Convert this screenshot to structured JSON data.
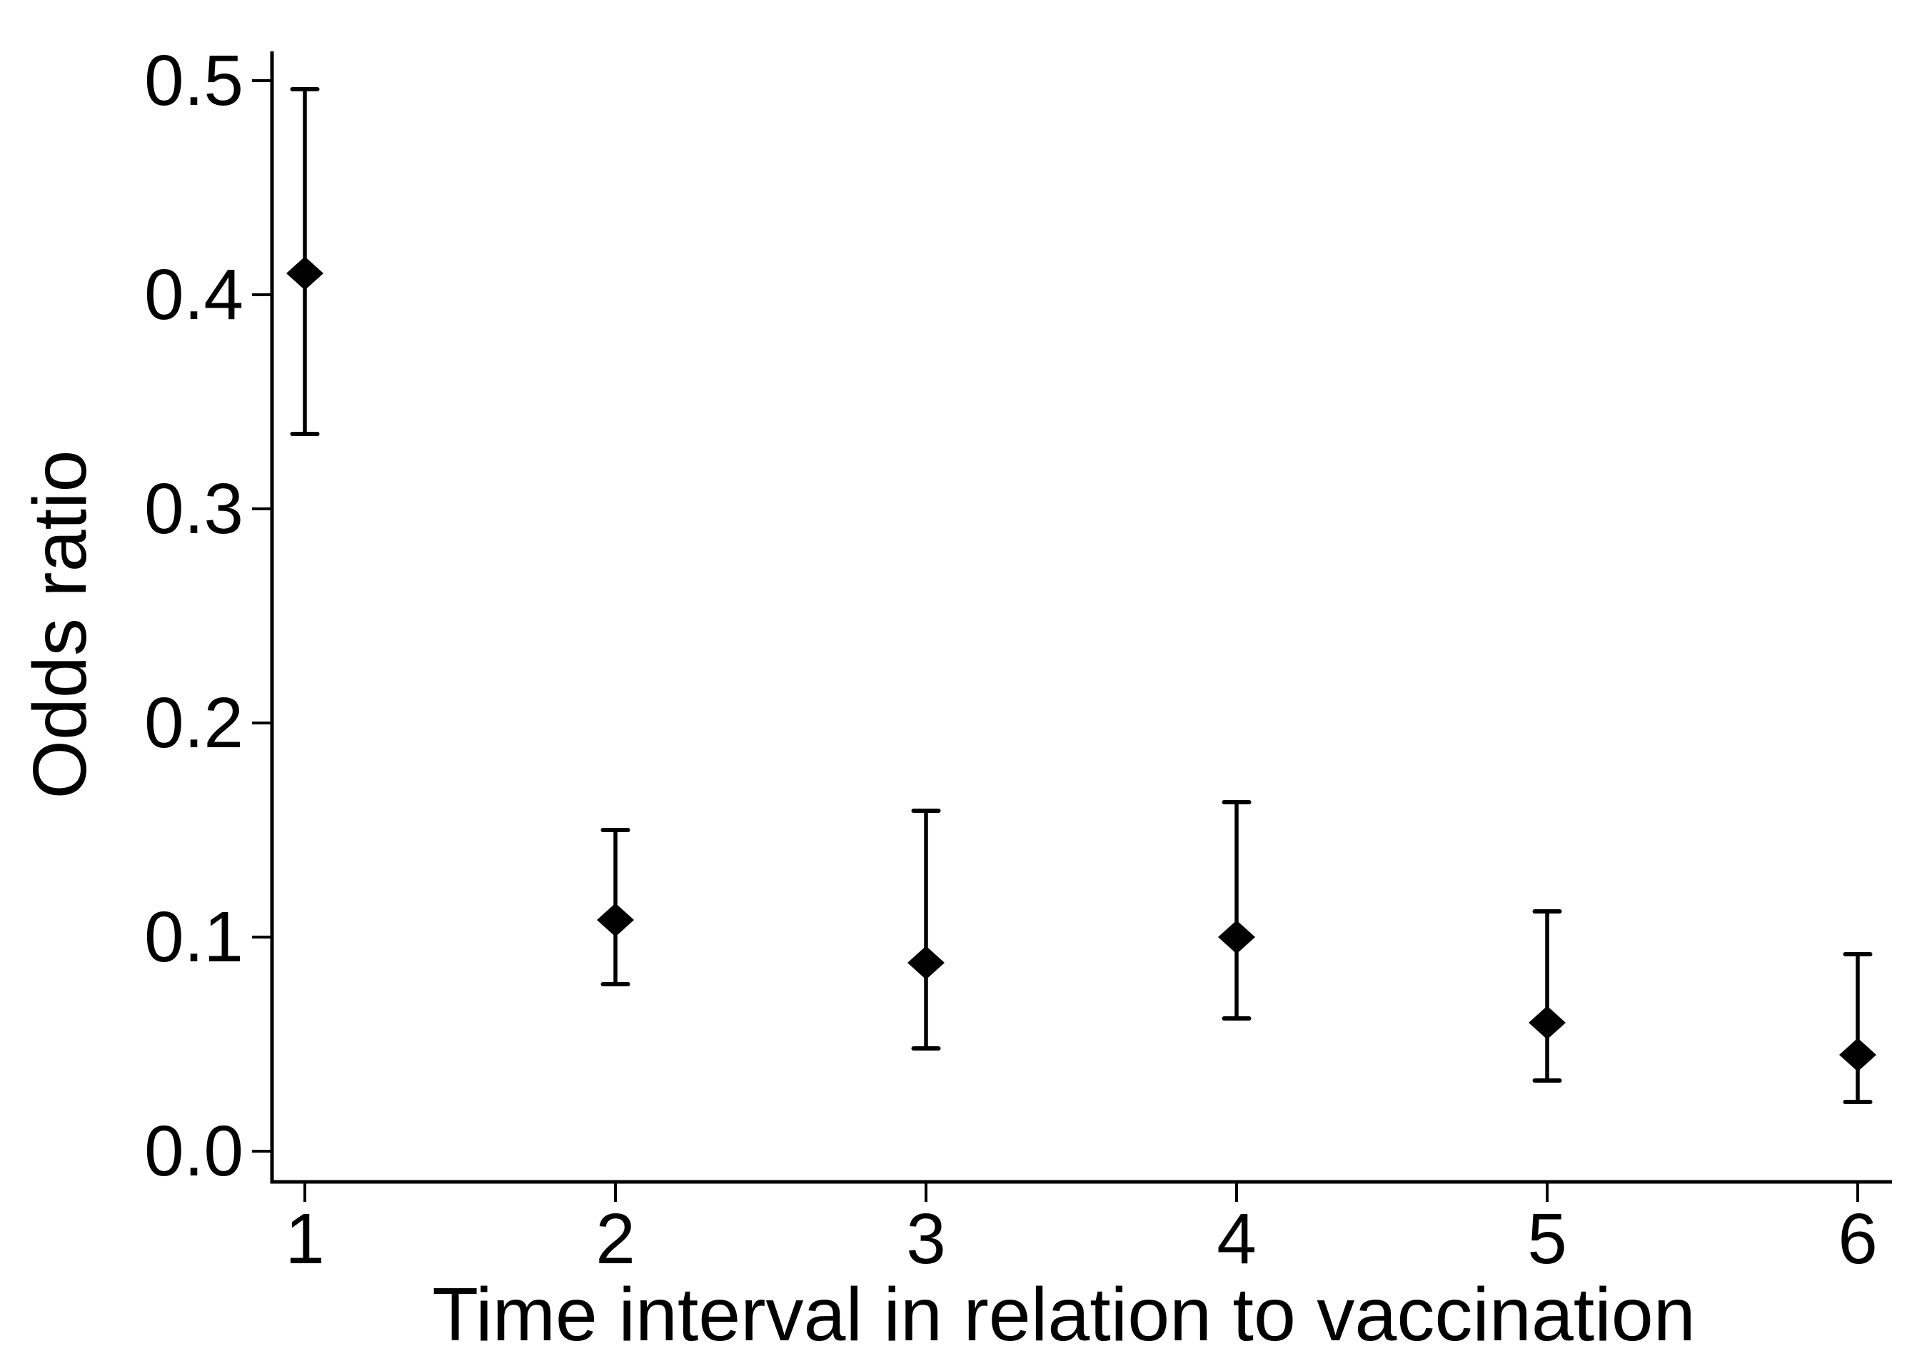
{
  "figure": {
    "background": "#ffffff",
    "foreground": "#000000"
  },
  "chart_data": {
    "type": "scatter",
    "subtype": "point-estimate-with-error-bars",
    "title": "",
    "xlabel": "Time interval in relation to vaccination",
    "ylabel": "Odds ratio",
    "marker": "diamond",
    "grid": false,
    "legend": "none",
    "x": [
      1,
      2,
      3,
      4,
      5,
      6
    ],
    "xtick_labels": [
      "1",
      "2",
      "3",
      "4",
      "5",
      "6"
    ],
    "ytick_values": [
      0.0,
      0.1,
      0.2,
      0.3,
      0.4,
      0.5
    ],
    "ytick_labels": [
      "0.0",
      "0.1",
      "0.2",
      "0.3",
      "0.4",
      "0.5"
    ],
    "xlim": [
      0.9,
      6.1
    ],
    "ylim": [
      0.0,
      0.52
    ],
    "series": [
      {
        "points": [
          {
            "x": 1,
            "y": 0.41,
            "ci_low": 0.335,
            "ci_high": 0.496
          },
          {
            "x": 2,
            "y": 0.108,
            "ci_low": 0.078,
            "ci_high": 0.15
          },
          {
            "x": 3,
            "y": 0.088,
            "ci_low": 0.048,
            "ci_high": 0.159
          },
          {
            "x": 4,
            "y": 0.1,
            "ci_low": 0.062,
            "ci_high": 0.163
          },
          {
            "x": 5,
            "y": 0.06,
            "ci_low": 0.033,
            "ci_high": 0.112
          },
          {
            "x": 6,
            "y": 0.045,
            "ci_low": 0.023,
            "ci_high": 0.092
          }
        ]
      }
    ]
  }
}
